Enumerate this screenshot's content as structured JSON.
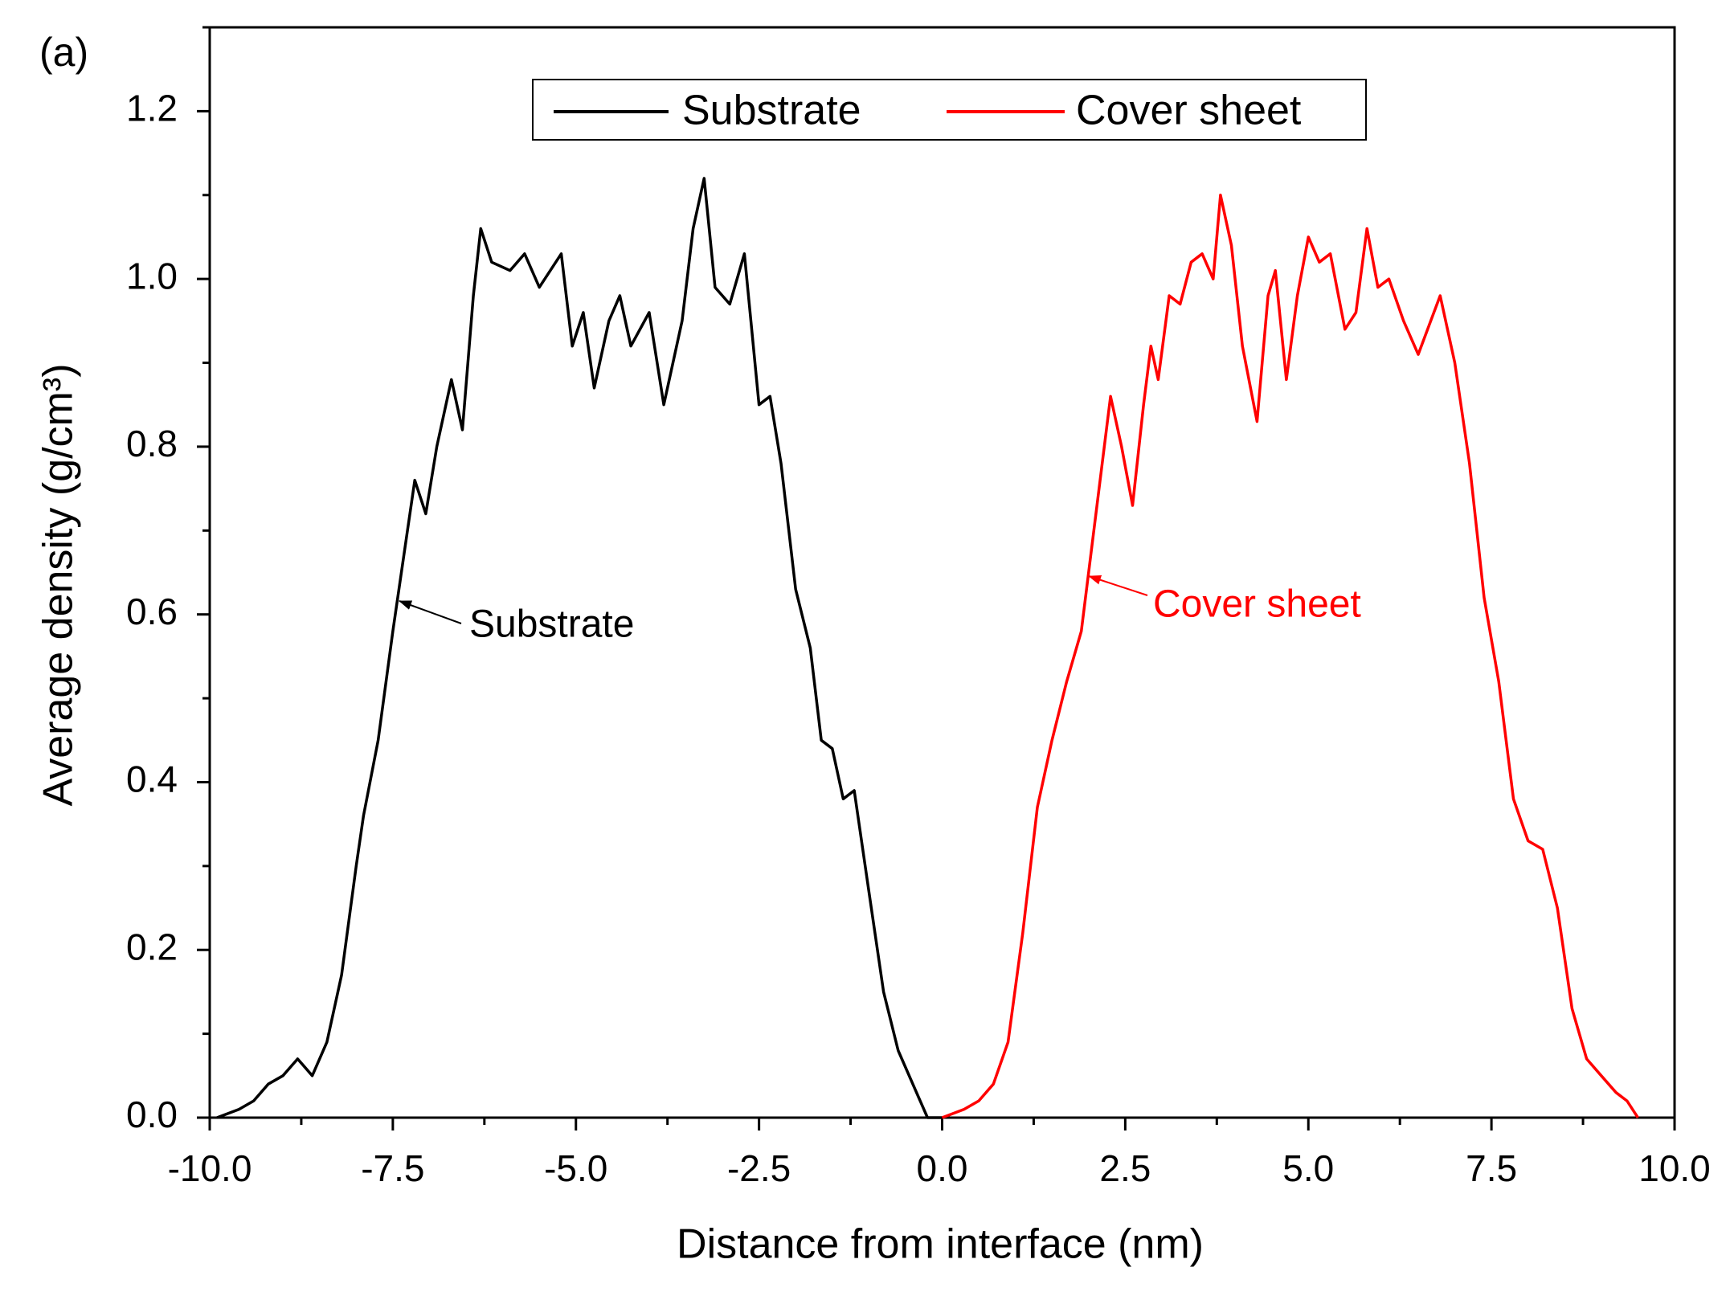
{
  "chart_data": {
    "type": "line",
    "panel_label": "(a)",
    "xlabel": "Distance from interface (nm)",
    "ylabel": "Average density (g/cm³)",
    "xlim": [
      -10,
      10
    ],
    "ylim": [
      0,
      1.3
    ],
    "xticks": [
      {
        "value": -10,
        "label": "-10.0"
      },
      -7.5,
      {
        "value": -5,
        "label": "-5.0"
      },
      -2.5,
      {
        "value": 0,
        "label": "0.0"
      },
      2.5,
      {
        "value": 5,
        "label": "5.0"
      },
      7.5,
      {
        "value": 10,
        "label": "10.0"
      }
    ],
    "yticks": [
      {
        "value": 0,
        "label": "0.0"
      },
      0.2,
      0.4,
      0.6,
      0.8,
      {
        "value": 1,
        "label": "1.0"
      },
      1.2
    ],
    "legend": "top",
    "grid": false,
    "series": [
      {
        "name": "Substrate",
        "color": "#000000",
        "x": [
          -9.9,
          -9.6,
          -9.4,
          -9.2,
          -9.0,
          -8.8,
          -8.6,
          -8.4,
          -8.2,
          -8.0,
          -7.9,
          -7.7,
          -7.5,
          -7.3,
          -7.2,
          -7.05,
          -6.9,
          -6.7,
          -6.55,
          -6.4,
          -6.3,
          -6.15,
          -5.9,
          -5.7,
          -5.5,
          -5.2,
          -5.05,
          -4.9,
          -4.75,
          -4.55,
          -4.4,
          -4.25,
          -4.0,
          -3.8,
          -3.55,
          -3.4,
          -3.25,
          -3.1,
          -2.9,
          -2.7,
          -2.5,
          -2.35,
          -2.2,
          -2.0,
          -1.8,
          -1.65,
          -1.5,
          -1.35,
          -1.2,
          -1.0,
          -0.8,
          -0.6,
          -0.4,
          -0.2,
          0.0
        ],
        "values": [
          0.0,
          0.01,
          0.02,
          0.04,
          0.05,
          0.07,
          0.05,
          0.09,
          0.17,
          0.3,
          0.36,
          0.45,
          0.58,
          0.7,
          0.76,
          0.72,
          0.8,
          0.88,
          0.82,
          0.98,
          1.06,
          1.02,
          1.01,
          1.03,
          0.99,
          1.03,
          0.92,
          0.96,
          0.87,
          0.95,
          0.98,
          0.92,
          0.96,
          0.85,
          0.95,
          1.06,
          1.12,
          0.99,
          0.97,
          1.03,
          0.85,
          0.86,
          0.78,
          0.63,
          0.56,
          0.45,
          0.44,
          0.38,
          0.39,
          0.27,
          0.15,
          0.08,
          0.04,
          0.0,
          0.0
        ]
      },
      {
        "name": "Cover sheet",
        "color": "#ff0000",
        "x": [
          0.0,
          0.3,
          0.5,
          0.7,
          0.9,
          1.1,
          1.3,
          1.5,
          1.7,
          1.9,
          2.1,
          2.3,
          2.45,
          2.6,
          2.75,
          2.85,
          2.95,
          3.1,
          3.25,
          3.4,
          3.55,
          3.7,
          3.8,
          3.95,
          4.1,
          4.3,
          4.45,
          4.55,
          4.7,
          4.85,
          5.0,
          5.15,
          5.3,
          5.5,
          5.65,
          5.8,
          5.95,
          6.1,
          6.3,
          6.5,
          6.8,
          7.0,
          7.2,
          7.4,
          7.6,
          7.8,
          8.0,
          8.2,
          8.4,
          8.6,
          8.8,
          9.0,
          9.2,
          9.35,
          9.5
        ],
        "values": [
          0.0,
          0.01,
          0.02,
          0.04,
          0.09,
          0.22,
          0.37,
          0.45,
          0.52,
          0.58,
          0.72,
          0.86,
          0.8,
          0.73,
          0.85,
          0.92,
          0.88,
          0.98,
          0.97,
          1.02,
          1.03,
          1.0,
          1.1,
          1.04,
          0.92,
          0.83,
          0.98,
          1.01,
          0.88,
          0.98,
          1.05,
          1.02,
          1.03,
          0.94,
          0.96,
          1.06,
          0.99,
          1.0,
          0.95,
          0.91,
          0.98,
          0.9,
          0.78,
          0.62,
          0.52,
          0.38,
          0.33,
          0.32,
          0.25,
          0.13,
          0.07,
          0.05,
          0.03,
          0.02,
          0.0
        ]
      }
    ],
    "annotations": [
      {
        "text": "Substrate",
        "color": "#000000"
      },
      {
        "text": "Cover sheet",
        "color": "#ff0000"
      }
    ]
  }
}
